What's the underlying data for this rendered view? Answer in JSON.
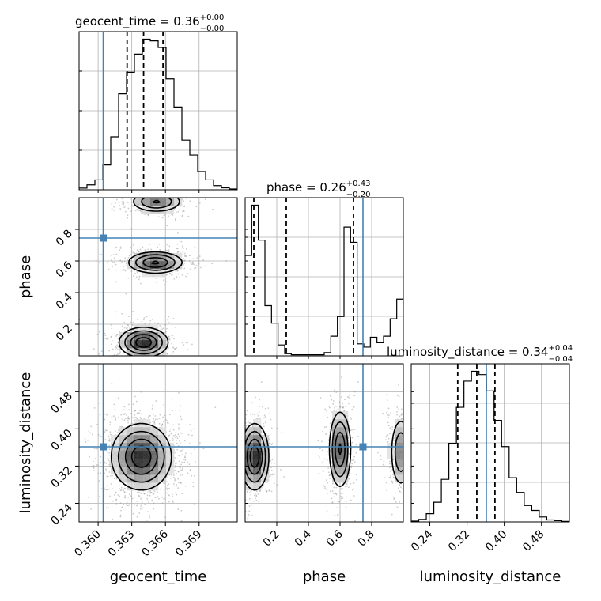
{
  "chart_data": {
    "type": "corner",
    "colors": {
      "truth": "#4682b4",
      "line": "#000000",
      "grid": "#b0b0b0",
      "points": "#9a9a9a"
    },
    "parameters": [
      {
        "key": "geocent_time",
        "label": "geocent_time",
        "title_main": "geocent_time = 0.36",
        "title_plus": "+0.00",
        "title_minus": "−0.00",
        "range": [
          0.3583,
          0.3724
        ],
        "ticks": [
          0.36,
          0.363,
          0.366,
          0.369
        ],
        "tick_labels": [
          "0.360",
          "0.363",
          "0.366",
          "0.369"
        ],
        "truth": 0.36045,
        "quantiles": [
          0.36258,
          0.36405,
          0.36578
        ],
        "hist_edges": [
          0.3583,
          0.3724
        ],
        "hist_values": [
          0.1,
          0.3,
          0.6,
          1.5,
          3.2,
          5.8,
          7.1,
          8.2,
          9.1,
          9.0,
          8.6,
          6.7,
          5.0,
          3.0,
          2.1,
          1.1,
          0.6,
          0.25,
          0.12,
          0.05
        ]
      },
      {
        "key": "phase",
        "label": "phase",
        "title_main": "phase = 0.26",
        "title_plus": "+0.43",
        "title_minus": "−0.20",
        "range": [
          0.0,
          1.0
        ],
        "ticks": [
          0.2,
          0.4,
          0.6,
          0.8
        ],
        "tick_labels": [
          "0.2",
          "0.4",
          "0.6",
          "0.8"
        ],
        "truth": 0.745,
        "quantiles": [
          0.055,
          0.26,
          0.685
        ],
        "hist_edges": [
          0.0,
          1.0
        ],
        "hist_values": [
          4.6,
          6.9,
          5.3,
          2.3,
          1.5,
          0.5,
          0.1,
          0.05,
          0.05,
          0.05,
          0.05,
          0.05,
          0.15,
          0.9,
          1.8,
          5.9,
          5.2,
          0.55,
          0.4,
          0.85,
          0.6,
          0.9,
          1.7,
          2.6
        ]
      },
      {
        "key": "luminosity_distance",
        "label": "luminosity_distance",
        "title_main": "luminosity_distance = 0.34",
        "title_plus": "+0.04",
        "title_minus": "−0.04",
        "range": [
          0.2,
          0.54
        ],
        "ticks": [
          0.24,
          0.32,
          0.4,
          0.48
        ],
        "tick_labels": [
          "0.24",
          "0.32",
          "0.40",
          "0.48"
        ],
        "truth": 0.3615,
        "quantiles": [
          0.3,
          0.341,
          0.38
        ],
        "hist_edges": [
          0.2,
          0.54
        ],
        "hist_values": [
          0.05,
          0.15,
          0.5,
          1.2,
          2.6,
          4.8,
          7.0,
          8.6,
          9.2,
          9.0,
          8.0,
          6.2,
          4.6,
          2.7,
          1.8,
          1.0,
          0.7,
          0.3,
          0.12,
          0.08,
          0.03
        ]
      }
    ],
    "left_ticks": {
      "phase": [
        "0.2",
        "0.4",
        "0.6",
        "0.8"
      ],
      "luminosity_distance": [
        "0.24",
        "0.32",
        "0.40",
        "0.48"
      ]
    },
    "left_tick_values": {
      "phase": [
        0.2,
        0.4,
        0.6,
        0.8
      ],
      "luminosity_distance": [
        0.24,
        0.32,
        0.4,
        0.48
      ]
    },
    "blobs": {
      "geocent_time__phase": [
        {
          "cx": 0.36405,
          "cy": 0.085,
          "sx": 0.0011,
          "sy": 0.048,
          "w": 1.0
        },
        {
          "cx": 0.3651,
          "cy": 0.59,
          "sx": 0.00125,
          "sy": 0.035,
          "w": 0.85
        },
        {
          "cx": 0.3652,
          "cy": 0.975,
          "sx": 0.0012,
          "sy": 0.035,
          "w": 0.6
        }
      ],
      "geocent_time__luminosity_distance": [
        {
          "cx": 0.36385,
          "cy": 0.34,
          "sx": 0.00135,
          "sy": 0.036,
          "w": 1.0
        }
      ],
      "phase__luminosity_distance": [
        {
          "cx": 0.06,
          "cy": 0.34,
          "sx": 0.045,
          "sy": 0.036,
          "w": 1.0
        },
        {
          "cx": 0.6,
          "cy": 0.356,
          "sx": 0.035,
          "sy": 0.042,
          "w": 0.85
        },
        {
          "cx": 0.985,
          "cy": 0.35,
          "sx": 0.035,
          "sy": 0.04,
          "w": 0.55
        }
      ]
    }
  }
}
